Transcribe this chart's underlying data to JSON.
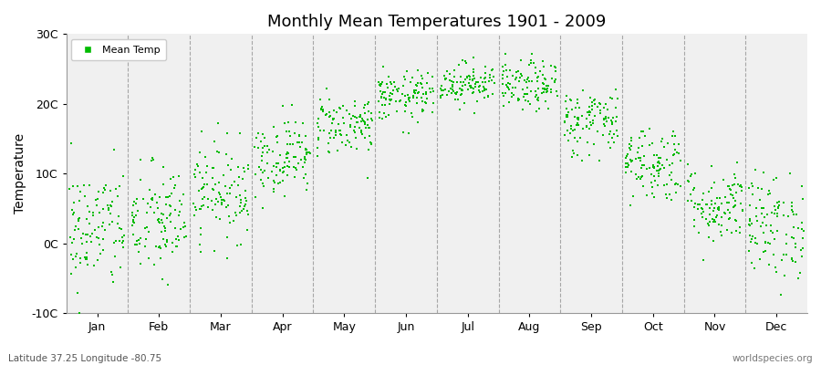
{
  "title": "Monthly Mean Temperatures 1901 - 2009",
  "ylabel": "Temperature",
  "bottom_left_text": "Latitude 37.25 Longitude -80.75",
  "bottom_right_text": "worldspecies.org",
  "legend_label": "Mean Temp",
  "marker_color": "#00BB00",
  "background_color": "#F0F0F0",
  "fig_background": "#FFFFFF",
  "ylim": [
    -10,
    30
  ],
  "yticks": [
    -10,
    0,
    10,
    20,
    30
  ],
  "ytick_labels": [
    "-10C",
    "0C",
    "10C",
    "20C",
    "30C"
  ],
  "months": [
    "Jan",
    "Feb",
    "Mar",
    "Apr",
    "May",
    "Jun",
    "Jul",
    "Aug",
    "Sep",
    "Oct",
    "Nov",
    "Dec"
  ],
  "monthly_means": [
    2.0,
    3.0,
    7.5,
    12.5,
    17.0,
    21.0,
    23.0,
    22.5,
    17.5,
    11.5,
    5.5,
    2.5
  ],
  "monthly_stds": [
    4.5,
    4.2,
    3.5,
    2.8,
    2.2,
    1.8,
    1.5,
    1.8,
    2.5,
    2.8,
    2.8,
    3.8
  ],
  "n_years": 109,
  "seed": 42
}
